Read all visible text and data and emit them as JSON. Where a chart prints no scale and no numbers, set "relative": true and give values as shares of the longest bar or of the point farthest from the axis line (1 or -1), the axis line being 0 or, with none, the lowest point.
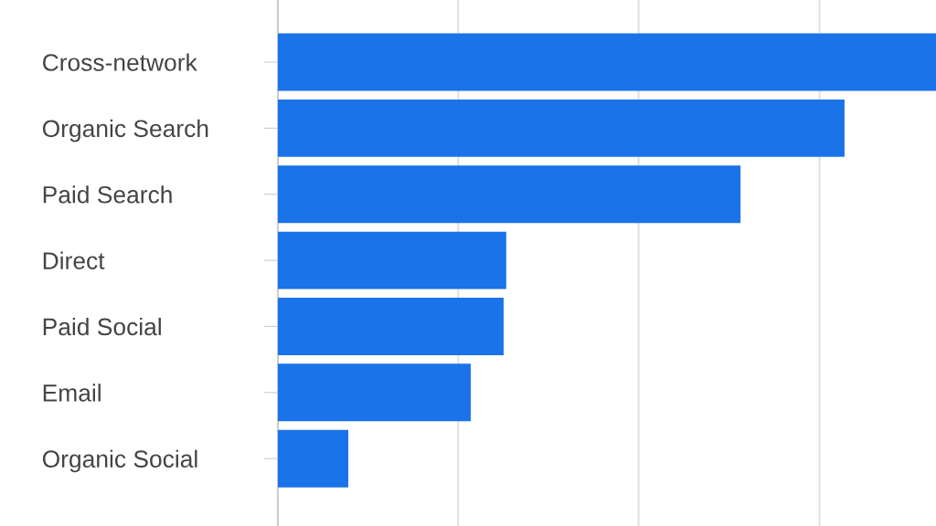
{
  "chart_data": {
    "type": "bar",
    "orientation": "horizontal",
    "relative": true,
    "categories": [
      "Cross-network",
      "Organic Search",
      "Paid Search",
      "Direct",
      "Paid Social",
      "Email",
      "Organic Social"
    ],
    "values": [
      1,
      0.861,
      0.703,
      0.347,
      0.343,
      0.293,
      0.107
    ],
    "color": "#1a73e8",
    "grid": "x",
    "tick_labels": "y",
    "legend": false
  }
}
